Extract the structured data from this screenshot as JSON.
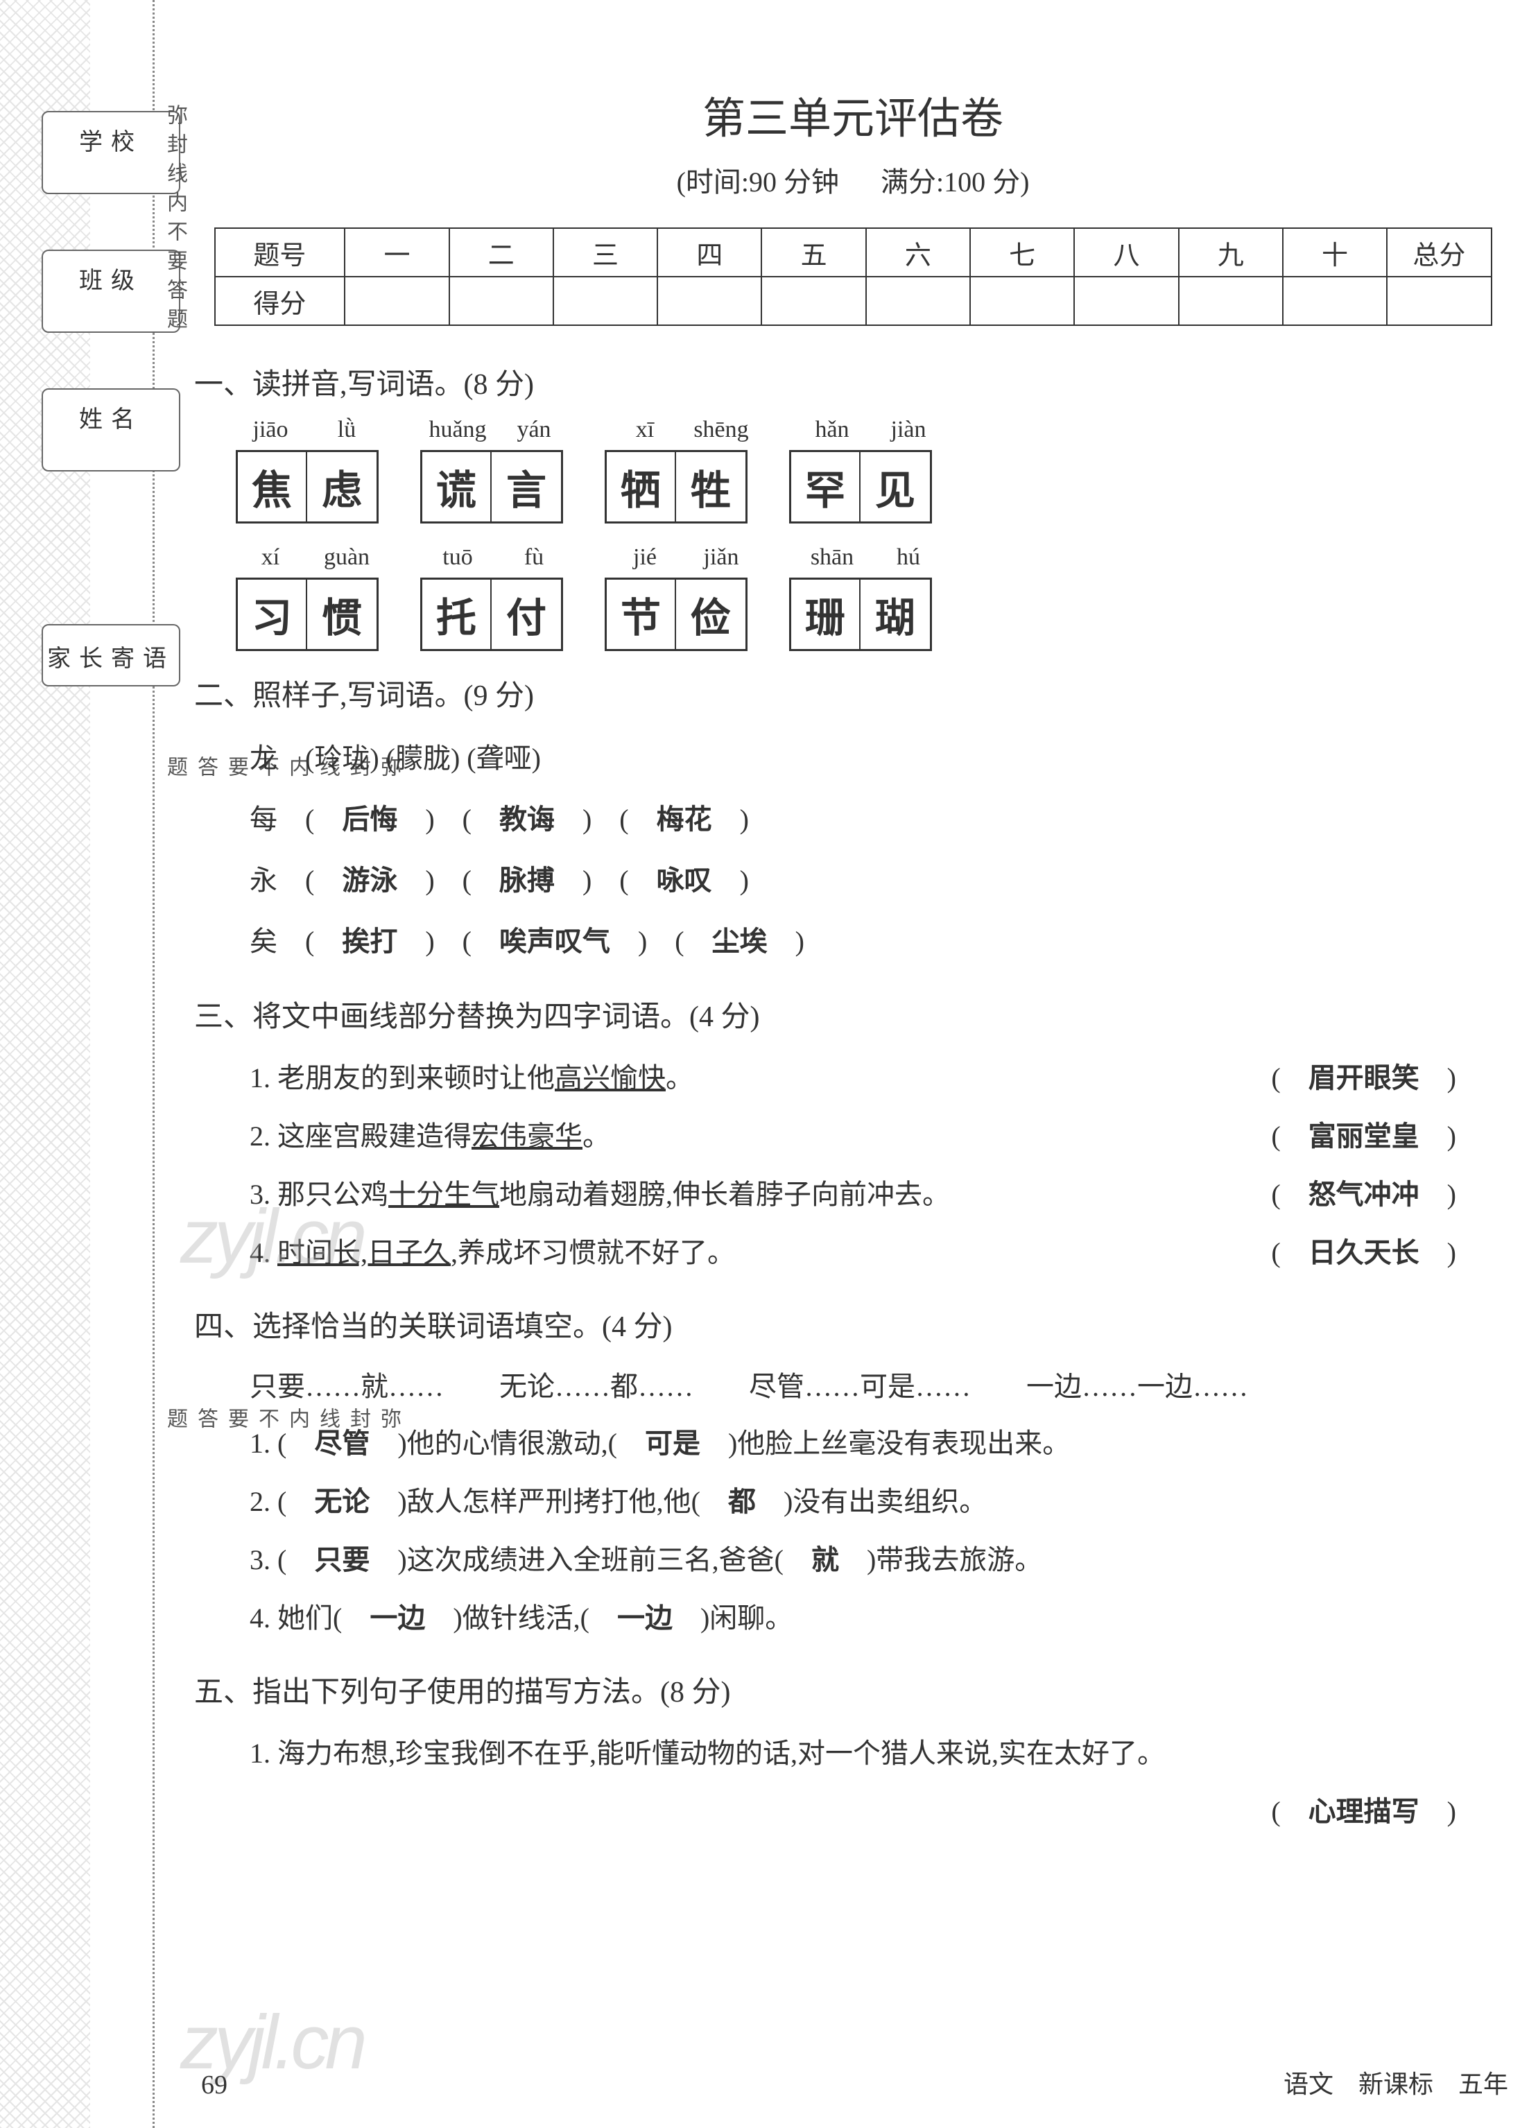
{
  "title": "第三单元评估卷",
  "subtitle_time": "(时间:90 分钟",
  "subtitle_score": "满分:100 分)",
  "sidebar": {
    "school": "学校",
    "class": "班级",
    "name": "姓名",
    "parent_msg": "家长寄语",
    "seal_text": "弥封线内不要答题"
  },
  "score_table": {
    "row1_label": "题号",
    "cols": [
      "一",
      "二",
      "三",
      "四",
      "五",
      "六",
      "七",
      "八",
      "九",
      "十",
      "总分"
    ],
    "row2_label": "得分"
  },
  "q1": {
    "heading": "一、读拼音,写词语。(8 分)",
    "row1": {
      "pinyin": [
        [
          "jiāo",
          "lǜ"
        ],
        [
          "huǎng",
          "yán"
        ],
        [
          "xī",
          "shēng"
        ],
        [
          "hǎn",
          "jiàn"
        ]
      ],
      "chars": [
        [
          "焦",
          "虑"
        ],
        [
          "谎",
          "言"
        ],
        [
          "牺",
          "牲"
        ],
        [
          "罕",
          "见"
        ]
      ]
    },
    "row2": {
      "pinyin": [
        [
          "xí",
          "guàn"
        ],
        [
          "tuō",
          "fù"
        ],
        [
          "jié",
          "jiǎn"
        ],
        [
          "shān",
          "hú"
        ]
      ],
      "chars": [
        [
          "习",
          "惯"
        ],
        [
          "托",
          "付"
        ],
        [
          "节",
          "俭"
        ],
        [
          "珊",
          "瑚"
        ]
      ]
    }
  },
  "q2": {
    "heading": "二、照样子,写词语。(9 分)",
    "lines": [
      {
        "stem": "龙",
        "examples": [
          "(玲珑)",
          "(朦胧)",
          "(聋哑)"
        ],
        "is_example": true
      },
      {
        "stem": "每",
        "answers": [
          "后悔",
          "教诲",
          "梅花"
        ]
      },
      {
        "stem": "永",
        "answers": [
          "游泳",
          "脉搏",
          "咏叹"
        ]
      },
      {
        "stem": "矣",
        "answers": [
          "挨打",
          "唉声叹气",
          "尘埃"
        ]
      }
    ]
  },
  "q3": {
    "heading": "三、将文中画线部分替换为四字词语。(4 分)",
    "items": [
      {
        "n": "1.",
        "pre": "老朋友的到来顿时让他",
        "u": "高兴愉快",
        "post": "。",
        "ans": "眉开眼笑"
      },
      {
        "n": "2.",
        "pre": "这座宫殿建造得",
        "u": "宏伟豪华",
        "post": "。",
        "ans": "富丽堂皇"
      },
      {
        "n": "3.",
        "pre": "那只公鸡",
        "u": "十分生气",
        "post": "地扇动着翅膀,伸长着脖子向前冲去。",
        "ans": "怒气冲冲"
      },
      {
        "n": "4.",
        "pre": "",
        "u": "时间长,日子久",
        "post": ",养成坏习惯就不好了。",
        "ans": "日久天长"
      }
    ]
  },
  "q4": {
    "heading": "四、选择恰当的关联词语填空。(4 分)",
    "options": "只要……就……　　无论……都……　　尽管……可是……　　一边……一边……",
    "items": [
      {
        "n": "1.",
        "parts": [
          "(　",
          "尽管",
          "　)他的心情很激动,(　",
          "可是",
          "　)他脸上丝毫没有表现出来。"
        ]
      },
      {
        "n": "2.",
        "parts": [
          "(　",
          "无论",
          "　)敌人怎样严刑拷打他,他(　",
          "都",
          "　)没有出卖组织。"
        ]
      },
      {
        "n": "3.",
        "parts": [
          "(　",
          "只要",
          "　)这次成绩进入全班前三名,爸爸(　",
          "就",
          "　)带我去旅游。"
        ]
      },
      {
        "n": "4.",
        "parts": [
          "她们(　",
          "一边",
          "　)做针线活,(　",
          "一边",
          "　)闲聊。"
        ]
      }
    ]
  },
  "q5": {
    "heading": "五、指出下列句子使用的描写方法。(8 分)",
    "items": [
      {
        "n": "1.",
        "text": "海力布想,珍宝我倒不在乎,能听懂动物的话,对一个猎人来说,实在太好了。",
        "ans": "心理描写"
      }
    ]
  },
  "page_number": "69",
  "footer": "语文　新课标　五年",
  "watermark": "zyjl.cn",
  "colors": {
    "text": "#333333",
    "border": "#333333",
    "background": "#ffffff",
    "watermark": "#aaaaaa",
    "deco": "#999999"
  }
}
